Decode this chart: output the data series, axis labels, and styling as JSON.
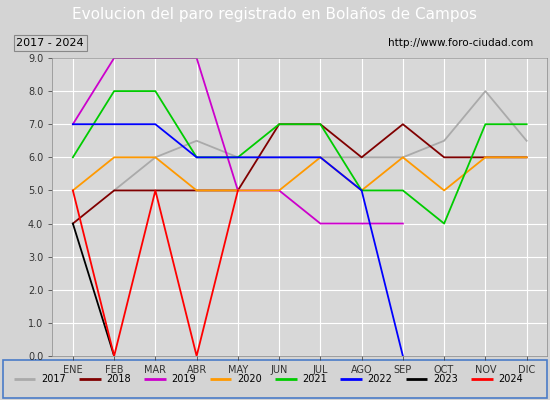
{
  "title": "Evolucion del paro registrado en Bolaños de Campos",
  "subtitle_left": "2017 - 2024",
  "subtitle_right": "http://www.foro-ciudad.com",
  "x_labels": [
    "ENE",
    "FEB",
    "MAR",
    "ABR",
    "MAY",
    "JUN",
    "JUL",
    "AGO",
    "SEP",
    "OCT",
    "NOV",
    "DIC"
  ],
  "ylim": [
    0.0,
    9.0
  ],
  "yticks": [
    0.0,
    1.0,
    2.0,
    3.0,
    4.0,
    5.0,
    6.0,
    7.0,
    8.0,
    9.0
  ],
  "series": [
    {
      "label": "2017",
      "color": "#aaaaaa",
      "data": [
        null,
        5.0,
        6.0,
        6.5,
        6.0,
        6.0,
        6.0,
        6.0,
        6.0,
        6.5,
        8.0,
        6.5
      ]
    },
    {
      "label": "2018",
      "color": "#800000",
      "data": [
        4.0,
        5.0,
        5.0,
        5.0,
        5.0,
        7.0,
        7.0,
        6.0,
        7.0,
        6.0,
        6.0,
        6.0
      ]
    },
    {
      "label": "2019",
      "color": "#cc00cc",
      "data": [
        7.0,
        9.0,
        9.0,
        9.0,
        5.0,
        5.0,
        4.0,
        4.0,
        4.0,
        null,
        null,
        null
      ]
    },
    {
      "label": "2020",
      "color": "#ff9900",
      "data": [
        5.0,
        6.0,
        6.0,
        5.0,
        5.0,
        5.0,
        6.0,
        5.0,
        6.0,
        5.0,
        6.0,
        6.0
      ]
    },
    {
      "label": "2021",
      "color": "#00cc00",
      "data": [
        6.0,
        8.0,
        8.0,
        6.0,
        6.0,
        7.0,
        7.0,
        5.0,
        5.0,
        4.0,
        7.0,
        7.0
      ]
    },
    {
      "label": "2022",
      "color": "#0000ff",
      "data": [
        7.0,
        7.0,
        7.0,
        6.0,
        6.0,
        6.0,
        6.0,
        5.0,
        0.0,
        null,
        null,
        null
      ]
    },
    {
      "label": "2023",
      "color": "#000000",
      "data": [
        4.0,
        0.0,
        null,
        null,
        null,
        null,
        null,
        null,
        null,
        null,
        null,
        null
      ]
    },
    {
      "label": "2024",
      "color": "#ff0000",
      "data": [
        5.0,
        0.0,
        5.0,
        0.0,
        5.0,
        null,
        null,
        null,
        null,
        null,
        null,
        null
      ]
    }
  ],
  "title_bg_color": "#4a7cc7",
  "title_fg_color": "#ffffff",
  "title_fontsize": 11,
  "subtitle_bg_color": "#d4d4d4",
  "plot_bg_color": "#d8d8d8",
  "grid_color": "#ffffff",
  "outer_bg_color": "#d4d4d4",
  "legend_bg_color": "#d4d4d4",
  "legend_border_color": "#4a7cc7"
}
